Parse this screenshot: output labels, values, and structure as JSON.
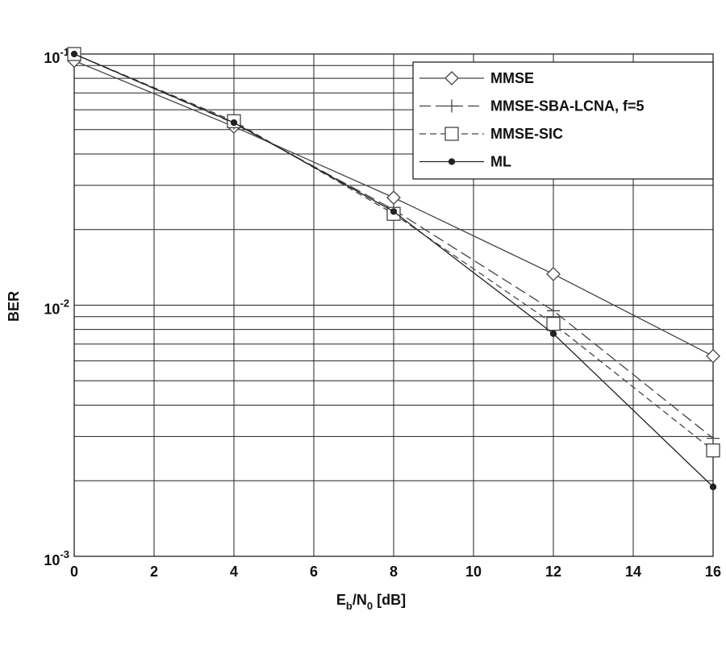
{
  "chart_data": {
    "type": "line",
    "x_label": "E_{b}/N_{0} [dB]",
    "y_label": "BER",
    "x": [
      0,
      4,
      8,
      12,
      16
    ],
    "xlim": [
      0,
      16
    ],
    "xticks": [
      0,
      2,
      4,
      6,
      8,
      10,
      12,
      14,
      16
    ],
    "ylim": [
      0.001,
      0.1
    ],
    "yticks": [
      {
        "value": 0.1,
        "label": "10^{-1}"
      },
      {
        "value": 0.01,
        "label": "10^{-2}"
      },
      {
        "value": 0.001,
        "label": "10^{-3}"
      }
    ],
    "log_y": true,
    "grid": true,
    "minor_grid": true,
    "legend": "upper right",
    "series": [
      {
        "name": "MMSE",
        "color": "#444444",
        "marker": "diamond",
        "dash": "none",
        "values": [
          0.094,
          0.0514,
          0.0268,
          0.0133,
          0.00627
        ]
      },
      {
        "name": "MMSE-SBA-LCNA, f=5",
        "color": "#444444",
        "marker": "plus",
        "dash": "14,6",
        "values": [
          0.1,
          0.053,
          0.024,
          0.0095,
          0.00295
        ]
      },
      {
        "name": "MMSE-SIC",
        "color": "#444444",
        "marker": "square",
        "dash": "8,5",
        "values": [
          0.1,
          0.054,
          0.0231,
          0.00843,
          0.00264
        ]
      },
      {
        "name": "ML",
        "color": "#222222",
        "marker": "dot",
        "dash": "none",
        "values": [
          0.1,
          0.0533,
          0.0236,
          0.0077,
          0.00189
        ]
      }
    ]
  }
}
